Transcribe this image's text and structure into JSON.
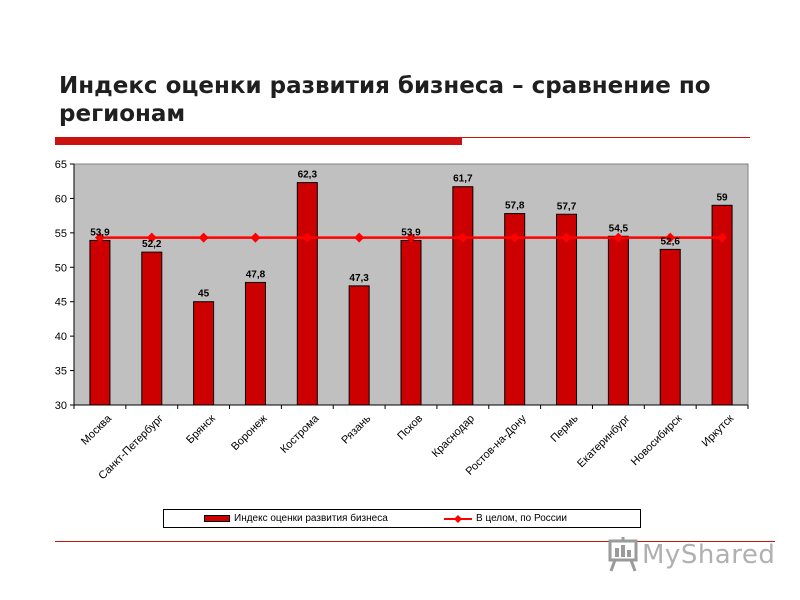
{
  "slide": {
    "title": "Индекс оценки развития бизнеса – сравнение по регионам"
  },
  "colors": {
    "accent": "#cc1111",
    "bar_fill": "#cc0000",
    "line": "#ff0000",
    "plot_background": "#c0c0c0"
  },
  "watermark": {
    "text": "MyShared",
    "icon": "presentation-board-icon"
  },
  "chart_data": {
    "type": "bar",
    "title": "",
    "xlabel": "",
    "ylabel": "",
    "categories": [
      "Москва",
      "Санкт-Петербург",
      "Брянск",
      "Воронеж",
      "Кострома",
      "Рязань",
      "Псков",
      "Краснодар",
      "Ростов-на-Дону",
      "Пермь",
      "Екатеринбург",
      "Новосибирск",
      "Иркутск"
    ],
    "series": [
      {
        "name": "Индекс оценки развития бизнеса",
        "type": "bar",
        "values": [
          53.9,
          52.2,
          45,
          47.8,
          62.3,
          47.3,
          53.9,
          61.7,
          57.8,
          57.7,
          54.5,
          52.6,
          59
        ],
        "labels": [
          "53,9",
          "52,2",
          "45",
          "47,8",
          "62,3",
          "47,3",
          "53,9",
          "61,7",
          "57,8",
          "57,7",
          "54,5",
          "52,6",
          "59"
        ]
      },
      {
        "name": "В целом, по России",
        "type": "line",
        "values": [
          54.3,
          54.3,
          54.3,
          54.3,
          54.3,
          54.3,
          54.3,
          54.3,
          54.3,
          54.3,
          54.3,
          54.3,
          54.3
        ]
      }
    ],
    "ylim": [
      30,
      65
    ],
    "yticks": [
      30,
      35,
      40,
      45,
      50,
      55,
      60,
      65
    ],
    "grid": false,
    "legend": "bottom"
  }
}
